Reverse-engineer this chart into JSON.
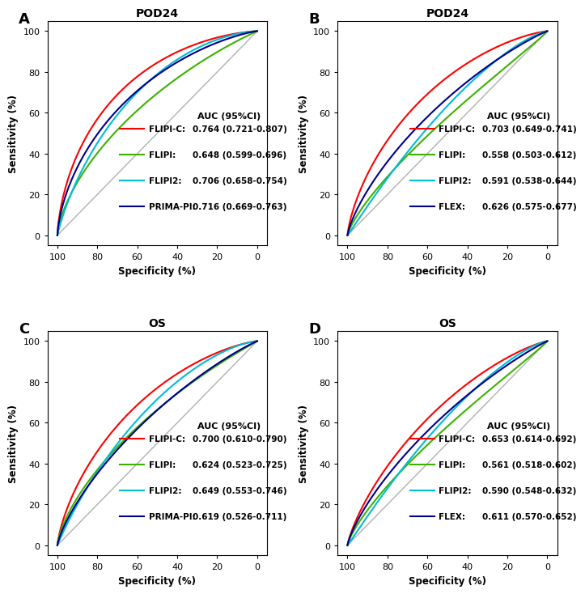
{
  "panels": [
    {
      "label": "A",
      "title": "POD24",
      "curves": [
        {
          "name": "FLIPI-C",
          "color": "#ff0000",
          "auc": 0.764,
          "ci": "0.721-0.807"
        },
        {
          "name": "FLIPI",
          "color": "#3cb200",
          "auc": 0.648,
          "ci": "0.599-0.696"
        },
        {
          "name": "FLIPI2",
          "color": "#00bcd4",
          "auc": 0.706,
          "ci": "0.658-0.754"
        },
        {
          "name": "PRIMA-PI",
          "color": "#00008b",
          "auc": 0.716,
          "ci": "0.669-0.763"
        }
      ]
    },
    {
      "label": "B",
      "title": "POD24",
      "curves": [
        {
          "name": "FLIPI-C",
          "color": "#ff0000",
          "auc": 0.703,
          "ci": "0.649-0.741"
        },
        {
          "name": "FLIPI",
          "color": "#3cb200",
          "auc": 0.558,
          "ci": "0.503-0.612"
        },
        {
          "name": "FLIPI2",
          "color": "#00bcd4",
          "auc": 0.591,
          "ci": "0.538-0.644"
        },
        {
          "name": "FLEX",
          "color": "#00008b",
          "auc": 0.626,
          "ci": "0.575-0.677"
        }
      ]
    },
    {
      "label": "C",
      "title": "OS",
      "curves": [
        {
          "name": "FLIPI-C",
          "color": "#ff0000",
          "auc": 0.7,
          "ci": "0.610-0.790"
        },
        {
          "name": "FLIPI",
          "color": "#3cb200",
          "auc": 0.624,
          "ci": "0.523-0.725"
        },
        {
          "name": "FLIPI2",
          "color": "#00bcd4",
          "auc": 0.649,
          "ci": "0.553-0.746"
        },
        {
          "name": "PRIMA-PI",
          "color": "#00008b",
          "auc": 0.619,
          "ci": "0.526-0.711"
        }
      ]
    },
    {
      "label": "D",
      "title": "OS",
      "curves": [
        {
          "name": "FLIPI-C",
          "color": "#ff0000",
          "auc": 0.653,
          "ci": "0.614-0.692"
        },
        {
          "name": "FLIPI",
          "color": "#3cb200",
          "auc": 0.561,
          "ci": "0.518-0.602"
        },
        {
          "name": "FLIPI2",
          "color": "#00bcd4",
          "auc": 0.59,
          "ci": "0.548-0.632"
        },
        {
          "name": "FLEX",
          "color": "#00008b",
          "auc": 0.611,
          "ci": "0.570-0.652"
        }
      ]
    }
  ],
  "background_color": "#ffffff",
  "label_fontsize": 13,
  "title_fontsize": 10,
  "axis_fontsize": 8.5,
  "tick_fontsize": 8,
  "legend_fontsize": 7.5,
  "legend_header_fontsize": 8
}
